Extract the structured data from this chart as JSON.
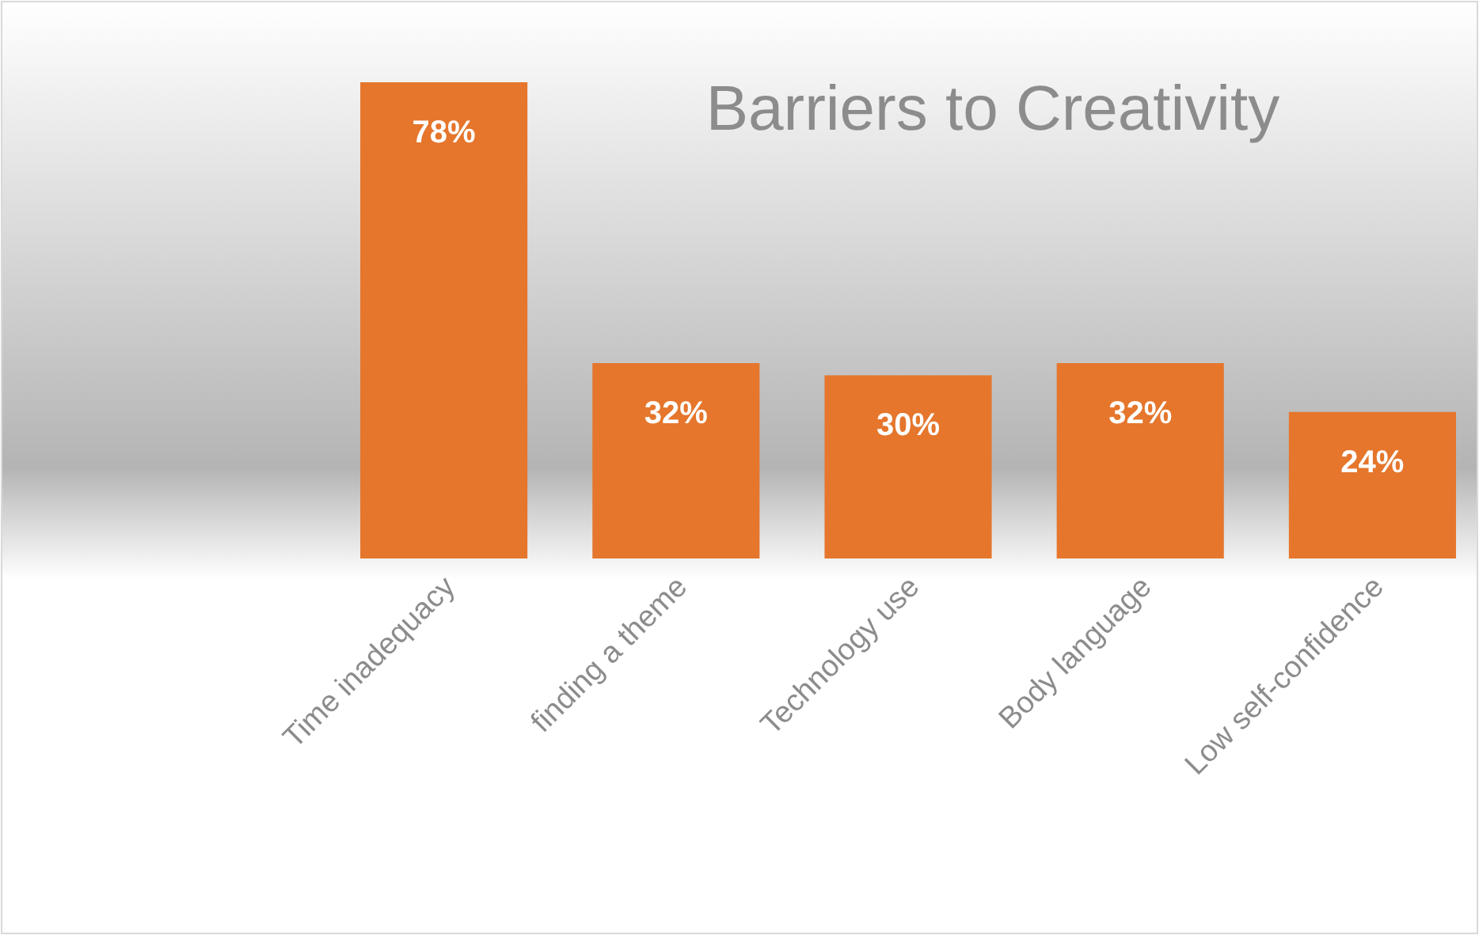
{
  "chart_data": {
    "type": "bar",
    "title": "Barriers to Creativity",
    "categories": [
      "Time inadequacy",
      "finding a theme",
      "Technology use",
      "Body language",
      "Low self-confidence"
    ],
    "values": [
      78,
      32,
      30,
      32,
      24
    ],
    "value_labels": [
      "78%",
      "32%",
      "30%",
      "32%",
      "24%"
    ],
    "color": "#e5762c"
  }
}
